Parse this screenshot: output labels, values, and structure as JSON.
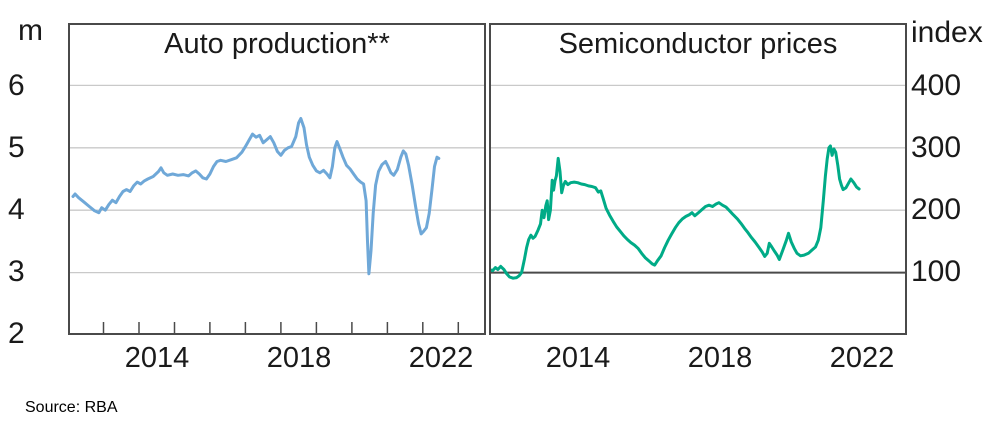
{
  "figure": {
    "source_note": "Source: RBA",
    "left_axis": {
      "unit": "m",
      "ticks": [
        "6",
        "5",
        "4",
        "3",
        "2"
      ]
    },
    "right_axis": {
      "unit": "index",
      "ticks": [
        "400",
        "300",
        "200",
        "100"
      ]
    },
    "x_axis": {
      "labels": [
        "2014",
        "2018",
        "2022"
      ]
    },
    "colors": {
      "auto_line": "#6fa8d8",
      "semi_line": "#00ab87",
      "grid": "#c9c9c9",
      "frame": "#4a4a4a",
      "text": "#1a1a1a"
    }
  },
  "chart_data": [
    {
      "type": "line",
      "title": "Auto production**",
      "ylabel": "m",
      "ylim": [
        2,
        7
      ],
      "xlim": [
        2012,
        2023.78
      ],
      "yticks": [
        3,
        4,
        5,
        6
      ],
      "xticks": [
        2013,
        2014,
        2015,
        2016,
        2017,
        2018,
        2019,
        2020,
        2021,
        2022,
        2023
      ],
      "xtick_label_positions": [
        2014.5,
        2018.5,
        2022.5
      ],
      "grid": true,
      "legend": "none",
      "line_color": "#6fa8d8",
      "series": [
        {
          "name": "Auto production (millions per month)",
          "points": [
            [
              2012.14,
              4.22
            ],
            [
              2012.2,
              4.26
            ],
            [
              2012.3,
              4.2
            ],
            [
              2012.45,
              4.13
            ],
            [
              2012.6,
              4.06
            ],
            [
              2012.75,
              3.99
            ],
            [
              2012.87,
              3.96
            ],
            [
              2012.95,
              4.04
            ],
            [
              2013.05,
              4.0
            ],
            [
              2013.15,
              4.09
            ],
            [
              2013.25,
              4.16
            ],
            [
              2013.35,
              4.12
            ],
            [
              2013.45,
              4.22
            ],
            [
              2013.55,
              4.3
            ],
            [
              2013.65,
              4.33
            ],
            [
              2013.75,
              4.3
            ],
            [
              2013.85,
              4.39
            ],
            [
              2013.95,
              4.45
            ],
            [
              2014.05,
              4.42
            ],
            [
              2014.15,
              4.47
            ],
            [
              2014.25,
              4.5
            ],
            [
              2014.4,
              4.54
            ],
            [
              2014.55,
              4.62
            ],
            [
              2014.62,
              4.68
            ],
            [
              2014.7,
              4.6
            ],
            [
              2014.8,
              4.56
            ],
            [
              2014.95,
              4.58
            ],
            [
              2015.1,
              4.56
            ],
            [
              2015.25,
              4.57
            ],
            [
              2015.4,
              4.55
            ],
            [
              2015.5,
              4.6
            ],
            [
              2015.6,
              4.63
            ],
            [
              2015.7,
              4.58
            ],
            [
              2015.8,
              4.52
            ],
            [
              2015.9,
              4.5
            ],
            [
              2016.0,
              4.58
            ],
            [
              2016.1,
              4.7
            ],
            [
              2016.2,
              4.78
            ],
            [
              2016.3,
              4.8
            ],
            [
              2016.45,
              4.78
            ],
            [
              2016.6,
              4.81
            ],
            [
              2016.75,
              4.84
            ],
            [
              2016.9,
              4.93
            ],
            [
              2017.0,
              5.02
            ],
            [
              2017.1,
              5.12
            ],
            [
              2017.2,
              5.22
            ],
            [
              2017.3,
              5.17
            ],
            [
              2017.4,
              5.2
            ],
            [
              2017.5,
              5.08
            ],
            [
              2017.6,
              5.13
            ],
            [
              2017.7,
              5.18
            ],
            [
              2017.8,
              5.08
            ],
            [
              2017.9,
              4.94
            ],
            [
              2018.0,
              4.88
            ],
            [
              2018.1,
              4.96
            ],
            [
              2018.2,
              5.0
            ],
            [
              2018.3,
              5.02
            ],
            [
              2018.42,
              5.18
            ],
            [
              2018.5,
              5.4
            ],
            [
              2018.56,
              5.47
            ],
            [
              2018.65,
              5.32
            ],
            [
              2018.72,
              5.05
            ],
            [
              2018.8,
              4.85
            ],
            [
              2018.9,
              4.72
            ],
            [
              2019.0,
              4.63
            ],
            [
              2019.1,
              4.6
            ],
            [
              2019.2,
              4.64
            ],
            [
              2019.3,
              4.58
            ],
            [
              2019.38,
              4.52
            ],
            [
              2019.45,
              4.7
            ],
            [
              2019.52,
              5.0
            ],
            [
              2019.58,
              5.1
            ],
            [
              2019.65,
              5.0
            ],
            [
              2019.75,
              4.85
            ],
            [
              2019.85,
              4.72
            ],
            [
              2019.95,
              4.66
            ],
            [
              2020.05,
              4.58
            ],
            [
              2020.15,
              4.5
            ],
            [
              2020.25,
              4.45
            ],
            [
              2020.33,
              4.42
            ],
            [
              2020.4,
              4.15
            ],
            [
              2020.44,
              3.5
            ],
            [
              2020.48,
              2.98
            ],
            [
              2020.54,
              3.35
            ],
            [
              2020.6,
              3.95
            ],
            [
              2020.67,
              4.4
            ],
            [
              2020.75,
              4.62
            ],
            [
              2020.85,
              4.73
            ],
            [
              2020.95,
              4.78
            ],
            [
              2021.02,
              4.7
            ],
            [
              2021.1,
              4.6
            ],
            [
              2021.18,
              4.56
            ],
            [
              2021.28,
              4.65
            ],
            [
              2021.38,
              4.85
            ],
            [
              2021.45,
              4.95
            ],
            [
              2021.52,
              4.9
            ],
            [
              2021.6,
              4.72
            ],
            [
              2021.7,
              4.4
            ],
            [
              2021.8,
              4.05
            ],
            [
              2021.88,
              3.78
            ],
            [
              2021.95,
              3.62
            ],
            [
              2022.02,
              3.66
            ],
            [
              2022.1,
              3.72
            ],
            [
              2022.18,
              3.95
            ],
            [
              2022.26,
              4.35
            ],
            [
              2022.33,
              4.7
            ],
            [
              2022.4,
              4.85
            ],
            [
              2022.45,
              4.83
            ]
          ]
        }
      ]
    },
    {
      "type": "line",
      "title": "Semiconductor prices",
      "ylabel": "index",
      "ylim": [
        0,
        500
      ],
      "xlim": [
        2012,
        2023.78
      ],
      "yticks": [
        100,
        200,
        300,
        400
      ],
      "baseline": 100,
      "xticks": [],
      "xtick_label_positions": [
        2014.5,
        2018.5,
        2022.5
      ],
      "grid": true,
      "legend": "none",
      "line_color": "#00ab87",
      "series": [
        {
          "name": "Semiconductor prices (index)",
          "points": [
            [
              2012.02,
              105
            ],
            [
              2012.1,
              103
            ],
            [
              2012.18,
              108
            ],
            [
              2012.25,
              105
            ],
            [
              2012.33,
              110
            ],
            [
              2012.42,
              105
            ],
            [
              2012.5,
              98
            ],
            [
              2012.58,
              93
            ],
            [
              2012.68,
              91
            ],
            [
              2012.78,
              92
            ],
            [
              2012.85,
              95
            ],
            [
              2012.92,
              100
            ],
            [
              2013.0,
              122
            ],
            [
              2013.06,
              140
            ],
            [
              2013.12,
              153
            ],
            [
              2013.18,
              160
            ],
            [
              2013.24,
              155
            ],
            [
              2013.3,
              158
            ],
            [
              2013.38,
              168
            ],
            [
              2013.45,
              178
            ],
            [
              2013.5,
              200
            ],
            [
              2013.55,
              188
            ],
            [
              2013.6,
              207
            ],
            [
              2013.64,
              215
            ],
            [
              2013.68,
              185
            ],
            [
              2013.73,
              200
            ],
            [
              2013.78,
              248
            ],
            [
              2013.82,
              232
            ],
            [
              2013.86,
              247
            ],
            [
              2013.9,
              255
            ],
            [
              2013.95,
              283
            ],
            [
              2014.0,
              262
            ],
            [
              2014.05,
              228
            ],
            [
              2014.1,
              240
            ],
            [
              2014.15,
              246
            ],
            [
              2014.22,
              241
            ],
            [
              2014.3,
              244
            ],
            [
              2014.4,
              245
            ],
            [
              2014.5,
              244
            ],
            [
              2014.6,
              242
            ],
            [
              2014.7,
              241
            ],
            [
              2014.8,
              239
            ],
            [
              2014.9,
              238
            ],
            [
              2015.0,
              236
            ],
            [
              2015.08,
              229
            ],
            [
              2015.15,
              231
            ],
            [
              2015.22,
              218
            ],
            [
              2015.3,
              203
            ],
            [
              2015.4,
              192
            ],
            [
              2015.5,
              182
            ],
            [
              2015.6,
              173
            ],
            [
              2015.7,
              166
            ],
            [
              2015.8,
              159
            ],
            [
              2015.9,
              153
            ],
            [
              2016.0,
              148
            ],
            [
              2016.1,
              144
            ],
            [
              2016.2,
              139
            ],
            [
              2016.3,
              131
            ],
            [
              2016.4,
              124
            ],
            [
              2016.5,
              119
            ],
            [
              2016.6,
              114
            ],
            [
              2016.67,
              112
            ],
            [
              2016.75,
              119
            ],
            [
              2016.85,
              127
            ],
            [
              2016.95,
              140
            ],
            [
              2017.05,
              152
            ],
            [
              2017.15,
              162
            ],
            [
              2017.25,
              172
            ],
            [
              2017.35,
              180
            ],
            [
              2017.45,
              186
            ],
            [
              2017.55,
              190
            ],
            [
              2017.65,
              193
            ],
            [
              2017.72,
              196
            ],
            [
              2017.8,
              191
            ],
            [
              2017.9,
              196
            ],
            [
              2018.0,
              201
            ],
            [
              2018.1,
              206
            ],
            [
              2018.2,
              208
            ],
            [
              2018.3,
              206
            ],
            [
              2018.4,
              210
            ],
            [
              2018.48,
              212
            ],
            [
              2018.58,
              208
            ],
            [
              2018.68,
              205
            ],
            [
              2018.78,
              199
            ],
            [
              2018.88,
              193
            ],
            [
              2019.0,
              186
            ],
            [
              2019.1,
              179
            ],
            [
              2019.2,
              171
            ],
            [
              2019.3,
              164
            ],
            [
              2019.4,
              156
            ],
            [
              2019.5,
              149
            ],
            [
              2019.6,
              141
            ],
            [
              2019.7,
              133
            ],
            [
              2019.77,
              126
            ],
            [
              2019.84,
              131
            ],
            [
              2019.9,
              147
            ],
            [
              2019.97,
              141
            ],
            [
              2020.05,
              134
            ],
            [
              2020.12,
              128
            ],
            [
              2020.18,
              121
            ],
            [
              2020.28,
              136
            ],
            [
              2020.38,
              152
            ],
            [
              2020.44,
              163
            ],
            [
              2020.52,
              149
            ],
            [
              2020.6,
              139
            ],
            [
              2020.68,
              131
            ],
            [
              2020.78,
              127
            ],
            [
              2020.88,
              128
            ],
            [
              2021.0,
              131
            ],
            [
              2021.1,
              136
            ],
            [
              2021.2,
              141
            ],
            [
              2021.28,
              152
            ],
            [
              2021.35,
              172
            ],
            [
              2021.42,
              215
            ],
            [
              2021.48,
              255
            ],
            [
              2021.53,
              282
            ],
            [
              2021.58,
              300
            ],
            [
              2021.62,
              303
            ],
            [
              2021.67,
              288
            ],
            [
              2021.72,
              298
            ],
            [
              2021.77,
              293
            ],
            [
              2021.83,
              272
            ],
            [
              2021.88,
              250
            ],
            [
              2021.93,
              240
            ],
            [
              2021.98,
              233
            ],
            [
              2022.06,
              236
            ],
            [
              2022.14,
              244
            ],
            [
              2022.2,
              250
            ],
            [
              2022.28,
              244
            ],
            [
              2022.36,
              237
            ],
            [
              2022.43,
              234
            ]
          ]
        }
      ]
    }
  ]
}
